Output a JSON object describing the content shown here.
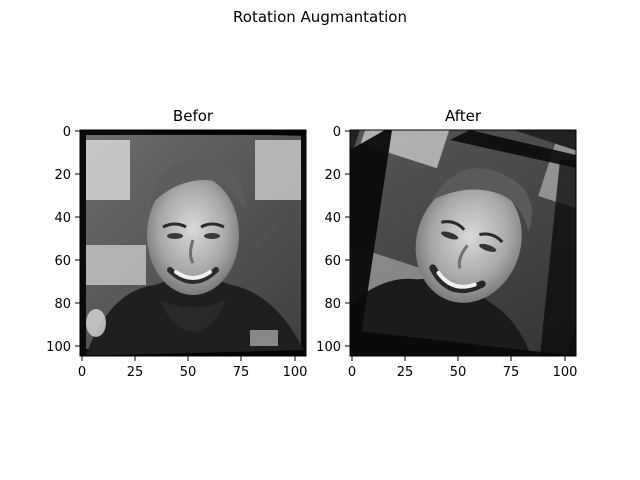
{
  "figure": {
    "suptitle": "Rotation Augmantation"
  },
  "panels": [
    {
      "title": "Befor",
      "description_depiction": "grayscale face",
      "xticks": [
        "0",
        "25",
        "50",
        "75",
        "100"
      ],
      "yticks": [
        "0",
        "20",
        "40",
        "60",
        "80",
        "100"
      ],
      "xlim": [
        0,
        105
      ],
      "ylim": [
        0,
        105
      ],
      "rotation": "slight"
    },
    {
      "title": "After",
      "description_depiction": "grayscale face rotated",
      "xticks": [
        "0",
        "25",
        "50",
        "75",
        "100"
      ],
      "yticks": [
        "0",
        "20",
        "40",
        "60",
        "80",
        "100"
      ],
      "xlim": [
        0,
        105
      ],
      "ylim": [
        0,
        105
      ],
      "rotation": "tilted"
    }
  ]
}
